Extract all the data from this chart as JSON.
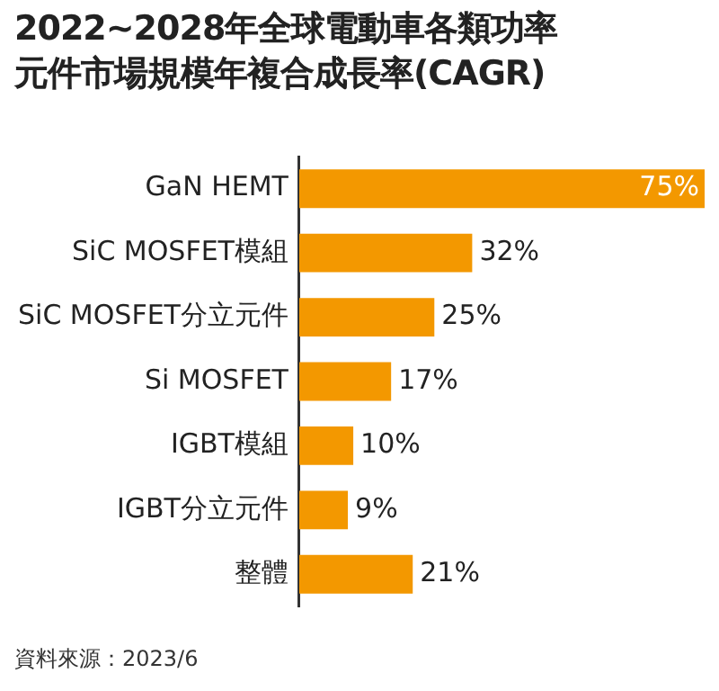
{
  "chart_data": {
    "type": "bar",
    "orientation": "horizontal",
    "title": [
      "2022~2028年全球電動車各類功率",
      "元件市場規模年複合成長率(CAGR)"
    ],
    "categories": [
      "GaN HEMT",
      "SiC MOSFET模組",
      "SiC MOSFET分立元件",
      "Si MOSFET",
      "IGBT模組",
      "IGBT分立元件",
      "整體"
    ],
    "values": [
      75,
      32,
      25,
      17,
      10,
      9,
      21
    ],
    "value_labels": [
      "75%",
      "32%",
      "25%",
      "17%",
      "10%",
      "9%",
      "21%"
    ],
    "color": "#f39800",
    "annotations": [
      "資料來源：2023/6"
    ]
  }
}
